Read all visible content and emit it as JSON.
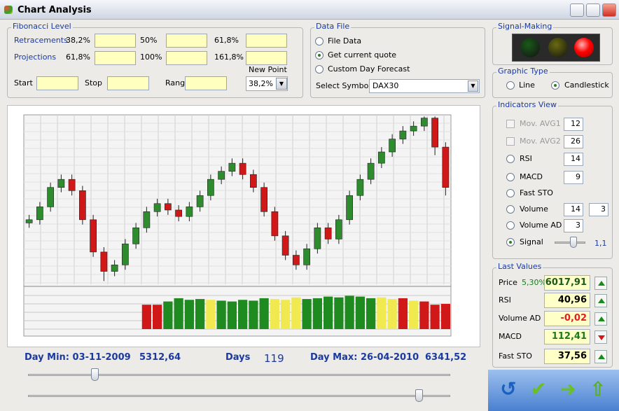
{
  "window": {
    "title": "Chart Analysis"
  },
  "fibonacci": {
    "title": "Fibonacci Level",
    "retracements": "Retracements",
    "r_levels": [
      "38,2%",
      "50%",
      "61,8%"
    ],
    "projections": "Projections",
    "p_levels": [
      "61,8%",
      "100%",
      "161,8%"
    ],
    "start": "Start",
    "stop": "Stop",
    "range": "Range",
    "new_point": "New Point",
    "new_point_value": "38,2%"
  },
  "data_file": {
    "title": "Data File",
    "options": [
      "File Data",
      "Get current quote",
      "Custom Day Forecast"
    ],
    "selected": 1,
    "select_symbol": "Select Symbol",
    "symbol": "DAX30"
  },
  "signal_making": {
    "title": "Signal-Making"
  },
  "graphic_type": {
    "title": "Graphic Type",
    "options": [
      "Line",
      "Candlestick"
    ],
    "selected": 1
  },
  "indicators": {
    "title": "Indicators View",
    "rows": [
      {
        "label": "Mov. AVG1",
        "control": "checkbox",
        "values": [
          12
        ]
      },
      {
        "label": "Mov. AVG2",
        "control": "checkbox",
        "values": [
          26
        ]
      },
      {
        "label": "RSI",
        "control": "radio",
        "values": [
          14
        ]
      },
      {
        "label": "MACD",
        "control": "radio",
        "values": [
          9
        ]
      },
      {
        "label": "Fast STO",
        "control": "radio",
        "values": []
      },
      {
        "label": "Volume",
        "control": "radio",
        "values": [
          14,
          3
        ]
      },
      {
        "label": "Volume AD",
        "control": "radio",
        "values": [
          3
        ]
      },
      {
        "label": "Signal",
        "control": "radio",
        "selected": true,
        "values": [],
        "slider_value": "1,1"
      }
    ]
  },
  "last_values": {
    "title": "Last Values",
    "rows": [
      {
        "label": "Price",
        "change": "5,30%",
        "value": "6017,91",
        "color": "#1a5a1a",
        "trend": "up"
      },
      {
        "label": "RSI",
        "value": "40,96",
        "color": "#000000",
        "trend": "up"
      },
      {
        "label": "Volume AD",
        "value": "-0,02",
        "color": "#e02020",
        "trend": "up"
      },
      {
        "label": "MACD",
        "value": "112,41",
        "color": "#1a7a1a",
        "trend": "down"
      },
      {
        "label": "Fast STO",
        "value": "37,56",
        "color": "#000000",
        "trend": "up"
      }
    ]
  },
  "summary": {
    "day_min_label": "Day Min: 03-11-2009",
    "day_min_value": "5312,64",
    "days_label": "Days",
    "days": 119,
    "day_max_label": "Day Max: 26-04-2010",
    "day_max_value": "6341,52"
  },
  "chart_data": {
    "type": "candlestick",
    "grid": true,
    "ylim": [
      5300,
      6350
    ],
    "open": [
      5680,
      5700,
      5780,
      5900,
      5950,
      5880,
      5700,
      5500,
      5380,
      5420,
      5550,
      5650,
      5750,
      5800,
      5760,
      5720,
      5780,
      5850,
      5950,
      6000,
      6050,
      5980,
      5900,
      5750,
      5600,
      5480,
      5420,
      5520,
      5650,
      5580,
      5700,
      5850,
      5950,
      6050,
      6120,
      6200,
      6250,
      6280,
      6330,
      6150
    ],
    "high": [
      5730,
      5810,
      5930,
      5980,
      5980,
      5910,
      5730,
      5530,
      5450,
      5580,
      5680,
      5780,
      5830,
      5830,
      5790,
      5810,
      5880,
      5980,
      6030,
      6080,
      6080,
      6010,
      5930,
      5780,
      5630,
      5510,
      5550,
      5680,
      5680,
      5730,
      5880,
      5980,
      6080,
      6150,
      6230,
      6280,
      6310,
      6340,
      6340,
      6180
    ],
    "low": [
      5650,
      5670,
      5750,
      5870,
      5850,
      5670,
      5470,
      5320,
      5350,
      5390,
      5520,
      5620,
      5720,
      5730,
      5690,
      5690,
      5750,
      5820,
      5920,
      5970,
      5950,
      5870,
      5720,
      5570,
      5450,
      5390,
      5390,
      5490,
      5550,
      5550,
      5670,
      5820,
      5920,
      6020,
      6090,
      6170,
      6220,
      6250,
      6100,
      5850
    ],
    "close": [
      5700,
      5780,
      5900,
      5950,
      5880,
      5700,
      5500,
      5380,
      5420,
      5550,
      5650,
      5750,
      5800,
      5760,
      5720,
      5780,
      5850,
      5950,
      6000,
      6050,
      5980,
      5900,
      5750,
      5600,
      5480,
      5420,
      5520,
      5650,
      5580,
      5700,
      5850,
      5950,
      6050,
      6120,
      6200,
      6250,
      6280,
      6330,
      6150,
      5900
    ],
    "up_color": "#2e8b2e",
    "down_color": "#d01818",
    "signal": {
      "ylim": [
        0,
        50
      ],
      "values": [
        null,
        null,
        null,
        null,
        null,
        null,
        null,
        null,
        null,
        null,
        null,
        30,
        30,
        34,
        38,
        36,
        37,
        36,
        35,
        34,
        36,
        35,
        38,
        37,
        36,
        39,
        37,
        38,
        40,
        39,
        41,
        40,
        38,
        39,
        37,
        38,
        35,
        34,
        30,
        31
      ],
      "colors": [
        null,
        null,
        null,
        null,
        null,
        null,
        null,
        null,
        null,
        null,
        null,
        "#d01818",
        "#d01818",
        "#1f8a1f",
        "#1f8a1f",
        "#1f8a1f",
        "#1f8a1f",
        "#f0ea50",
        "#1f8a1f",
        "#1f8a1f",
        "#1f8a1f",
        "#1f8a1f",
        "#1f8a1f",
        "#f0ea50",
        "#f0ea50",
        "#f0ea50",
        "#1f8a1f",
        "#1f8a1f",
        "#1f8a1f",
        "#1f8a1f",
        "#1f8a1f",
        "#1f8a1f",
        "#1f8a1f",
        "#f0ea50",
        "#f0ea50",
        "#d01818",
        "#f0ea50",
        "#d01818",
        "#d01818",
        "#d01818"
      ]
    }
  }
}
